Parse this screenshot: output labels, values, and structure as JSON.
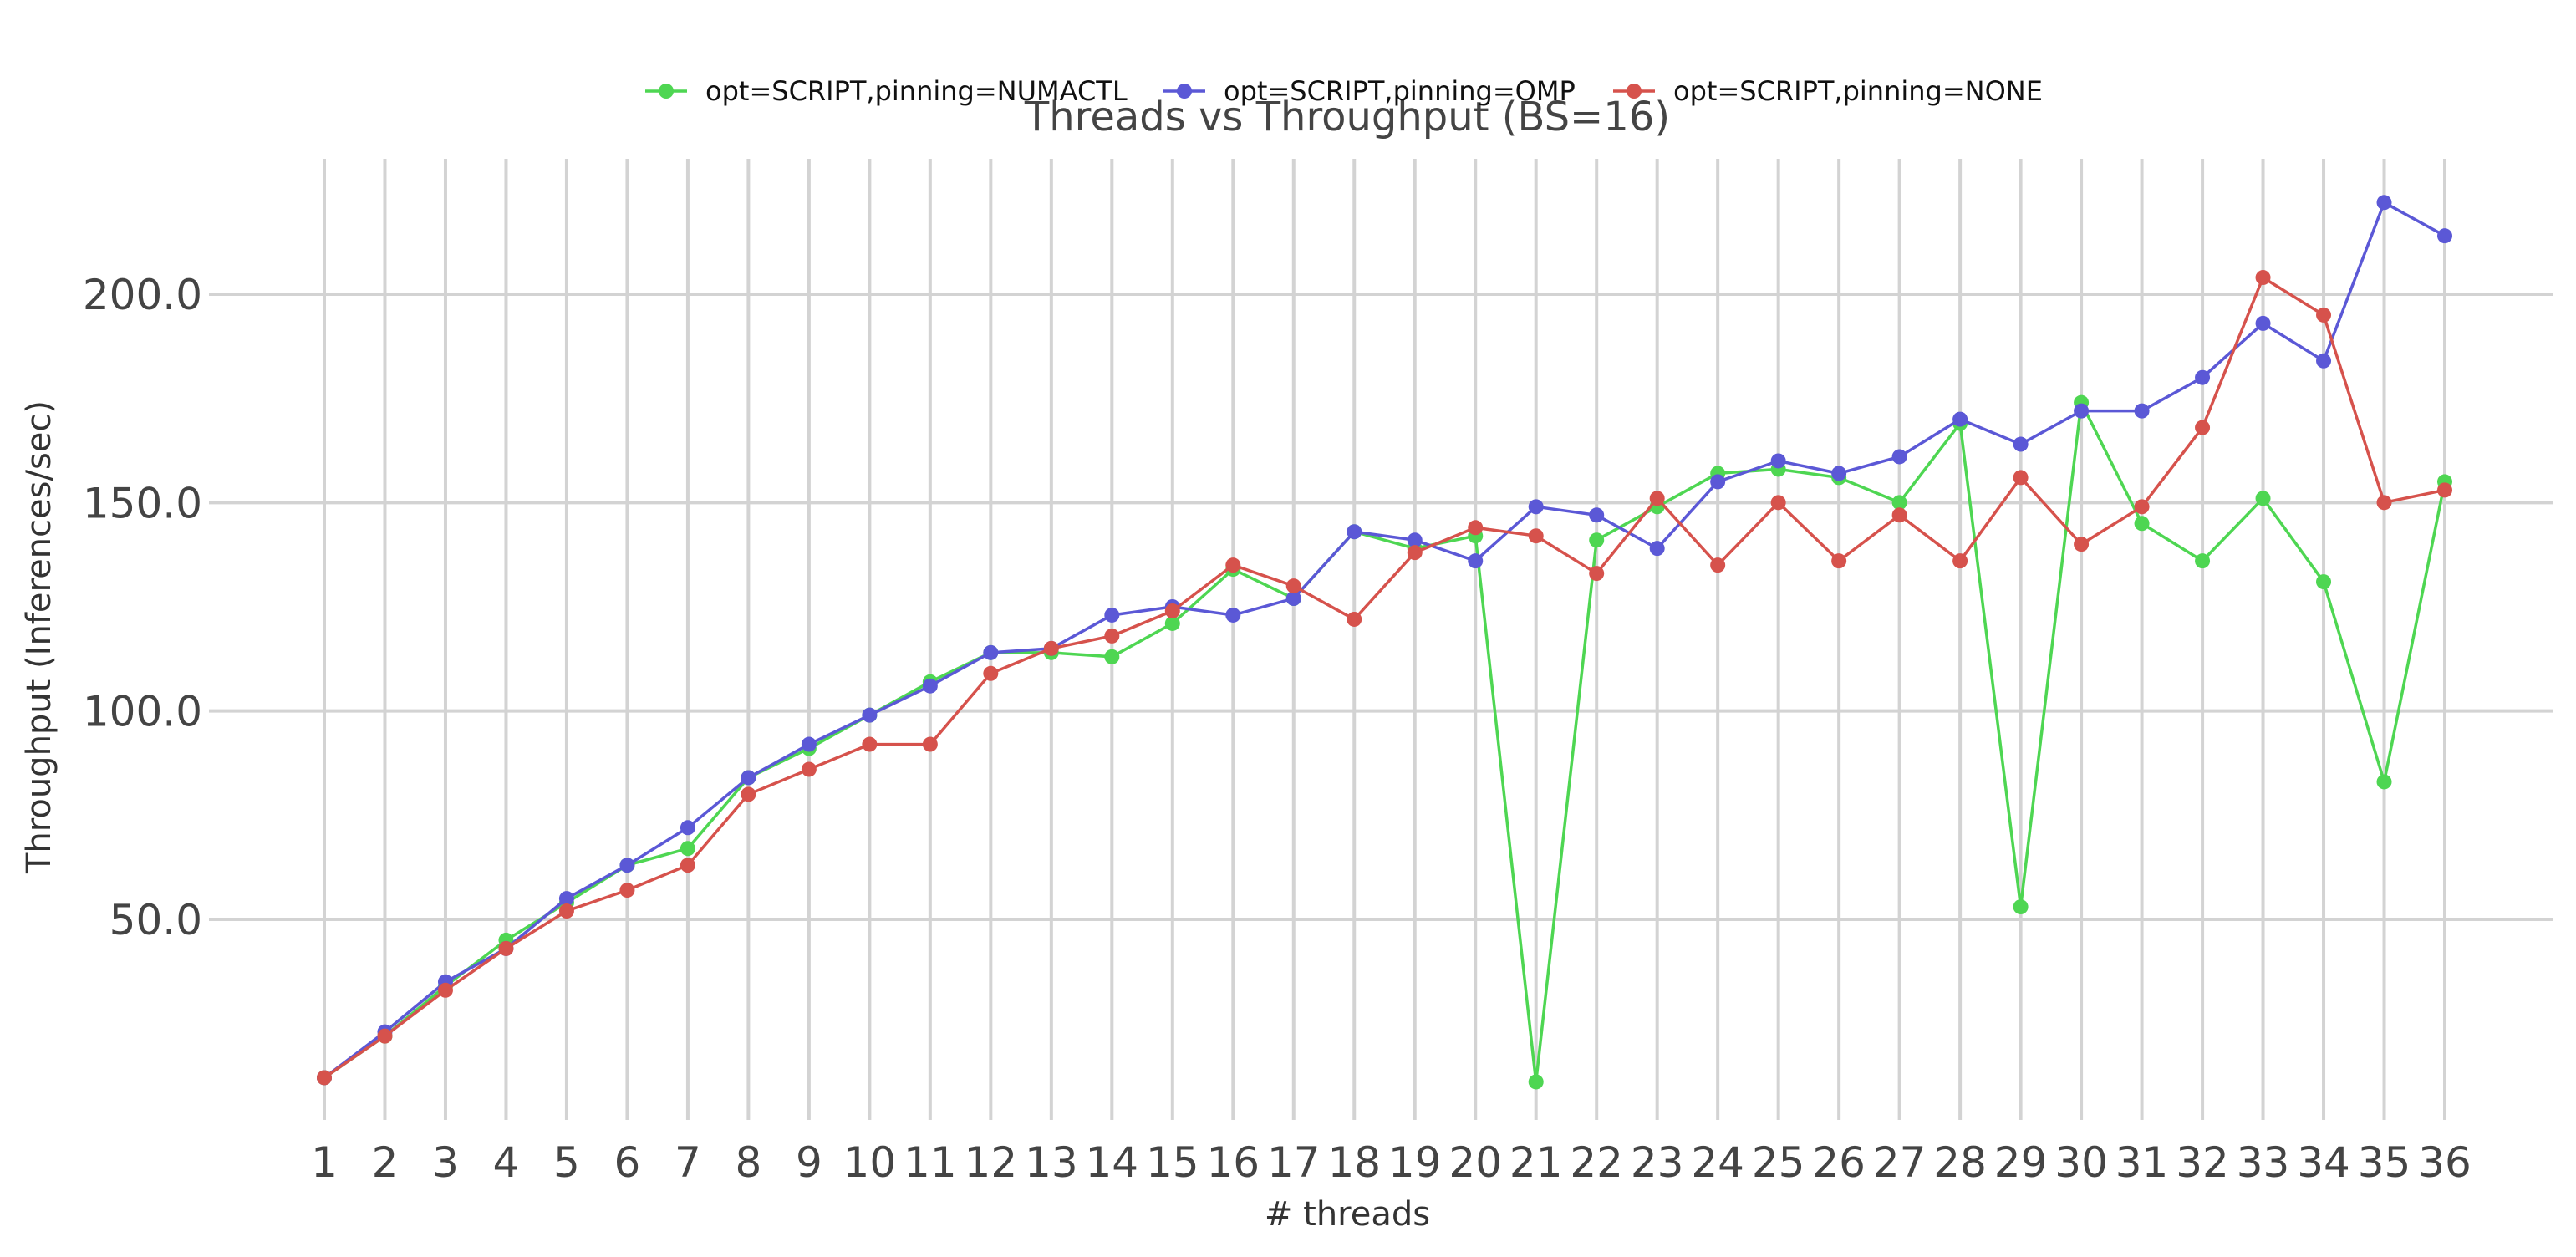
{
  "chart_data": {
    "type": "line",
    "title": "Threads vs Throughput (BS=16)",
    "xlabel": "# threads",
    "ylabel": "Throughput (Inferences/sec)",
    "grid": true,
    "legend_position": "top-center",
    "x": [
      1,
      2,
      3,
      4,
      5,
      6,
      7,
      8,
      9,
      10,
      11,
      12,
      13,
      14,
      15,
      16,
      17,
      18,
      19,
      20,
      21,
      22,
      23,
      24,
      25,
      26,
      27,
      28,
      29,
      30,
      31,
      32,
      33,
      34,
      35,
      36
    ],
    "x_tick_labels": [
      "1",
      "2",
      "3",
      "4",
      "5",
      "6",
      "7",
      "8",
      "9",
      "10",
      "11",
      "12",
      "13",
      "14",
      "15",
      "16",
      "17",
      "18",
      "19",
      "20",
      "21",
      "22",
      "23",
      "24",
      "25",
      "26",
      "27",
      "28",
      "29",
      "30",
      "31",
      "32",
      "33",
      "34",
      "35",
      "36"
    ],
    "y_ticks": [
      50,
      100,
      150,
      200
    ],
    "y_tick_labels": [
      "50.0",
      "100.0",
      "150.0",
      "200.0"
    ],
    "ylim": [
      0,
      230
    ],
    "series": [
      {
        "name": "opt=SCRIPT,pinning=NUMACTL",
        "color": "#4ed652",
        "values": [
          12,
          22,
          34,
          45,
          54,
          63,
          67,
          84,
          91,
          99,
          107,
          114,
          114,
          113,
          121,
          134,
          127,
          143,
          139,
          142,
          11,
          141,
          149,
          157,
          158,
          156,
          150,
          169,
          53,
          174,
          145,
          136,
          151,
          131,
          83,
          155
        ]
      },
      {
        "name": "opt=SCRIPT,pinning=OMP",
        "color": "#5b58d6",
        "values": [
          12,
          23,
          35,
          43,
          55,
          63,
          72,
          84,
          92,
          99,
          106,
          114,
          115,
          123,
          125,
          123,
          127,
          143,
          141,
          136,
          149,
          147,
          139,
          155,
          160,
          157,
          161,
          170,
          164,
          172,
          172,
          180,
          193,
          184,
          222,
          214
        ]
      },
      {
        "name": "opt=SCRIPT,pinning=NONE",
        "color": "#d6524c",
        "values": [
          12,
          22,
          33,
          43,
          52,
          57,
          63,
          80,
          86,
          92,
          92,
          109,
          115,
          118,
          124,
          135,
          130,
          122,
          138,
          144,
          142,
          133,
          151,
          135,
          150,
          136,
          147,
          136,
          156,
          140,
          149,
          168,
          204,
          195,
          150,
          153
        ]
      }
    ]
  }
}
